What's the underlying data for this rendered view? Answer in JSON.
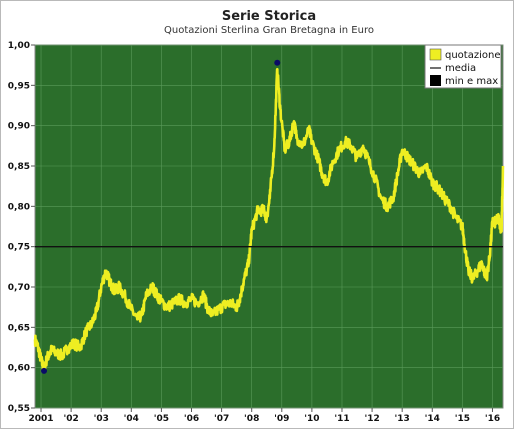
{
  "chart_data": {
    "type": "line",
    "title": "Serie Storica",
    "subtitle": "Quotazioni Sterlina Gran Bretagna in Euro",
    "xlabel": "",
    "ylabel": "",
    "xlim": [
      2000.8,
      2016.35
    ],
    "ylim": [
      0.55,
      1.0
    ],
    "y_ticks": [
      "1,00",
      "0,95",
      "0,90",
      "0,85",
      "0,80",
      "0,75",
      "0,70",
      "0,65",
      "0,60",
      "0,55"
    ],
    "x_ticks": [
      {
        "label": "2001",
        "x": 2001
      },
      {
        "label": "'02",
        "x": 2002
      },
      {
        "label": "'03",
        "x": 2003
      },
      {
        "label": "'04",
        "x": 2004
      },
      {
        "label": "'05",
        "x": 2005
      },
      {
        "label": "'06",
        "x": 2006
      },
      {
        "label": "'07",
        "x": 2007
      },
      {
        "label": "'08",
        "x": 2008
      },
      {
        "label": "'09",
        "x": 2009
      },
      {
        "label": "'10",
        "x": 2010
      },
      {
        "label": "'11",
        "x": 2011
      },
      {
        "label": "'12",
        "x": 2012
      },
      {
        "label": "'13",
        "x": 2013
      },
      {
        "label": "'14",
        "x": 2014
      },
      {
        "label": "'15",
        "x": 2015
      },
      {
        "label": "'16",
        "x": 2016
      }
    ],
    "grid": true,
    "legend_position": "top-right",
    "legend": [
      "quotazione",
      "media",
      "min e max"
    ],
    "colors": {
      "plot_background": "#2b6e2b",
      "grid": "#5a9a5a",
      "series": "#eeee22",
      "mean_line": "#111111",
      "markers": "#0a0a66"
    },
    "series": [
      {
        "name": "quotazione",
        "x": [
          2000.8,
          2000.9,
          2001.0,
          2001.1,
          2001.2,
          2001.35,
          2001.5,
          2001.7,
          2001.9,
          2002.1,
          2002.3,
          2002.5,
          2002.7,
          2002.85,
          2003.0,
          2003.15,
          2003.3,
          2003.45,
          2003.6,
          2003.8,
          2004.0,
          2004.2,
          2004.35,
          2004.5,
          2004.7,
          2004.85,
          2005.0,
          2005.2,
          2005.4,
          2005.6,
          2005.8,
          2006.0,
          2006.2,
          2006.4,
          2006.55,
          2006.7,
          2006.9,
          2007.1,
          2007.3,
          2007.5,
          2007.6,
          2007.75,
          2007.9,
          2008.0,
          2008.2,
          2008.4,
          2008.5,
          2008.6,
          2008.75,
          2008.85,
          2008.95,
          2009.1,
          2009.25,
          2009.4,
          2009.5,
          2009.7,
          2009.9,
          2010.0,
          2010.2,
          2010.35,
          2010.5,
          2010.7,
          2010.9,
          2011.1,
          2011.3,
          2011.5,
          2011.7,
          2011.9,
          2012.1,
          2012.3,
          2012.5,
          2012.7,
          2012.85,
          2013.0,
          2013.2,
          2013.4,
          2013.6,
          2013.8,
          2014.0,
          2014.2,
          2014.4,
          2014.6,
          2014.8,
          2015.0,
          2015.1,
          2015.2,
          2015.35,
          2015.5,
          2015.65,
          2015.8,
          2015.9,
          2016.0,
          2016.1,
          2016.2,
          2016.3,
          2016.35
        ],
        "values": [
          0.635,
          0.625,
          0.61,
          0.598,
          0.612,
          0.622,
          0.618,
          0.615,
          0.625,
          0.63,
          0.625,
          0.645,
          0.655,
          0.67,
          0.7,
          0.72,
          0.705,
          0.695,
          0.7,
          0.688,
          0.672,
          0.66,
          0.665,
          0.69,
          0.7,
          0.69,
          0.682,
          0.675,
          0.68,
          0.685,
          0.68,
          0.685,
          0.68,
          0.69,
          0.672,
          0.665,
          0.672,
          0.678,
          0.68,
          0.675,
          0.685,
          0.71,
          0.73,
          0.77,
          0.795,
          0.795,
          0.785,
          0.81,
          0.875,
          0.97,
          0.92,
          0.87,
          0.88,
          0.905,
          0.885,
          0.875,
          0.895,
          0.88,
          0.86,
          0.84,
          0.83,
          0.855,
          0.87,
          0.88,
          0.875,
          0.86,
          0.875,
          0.855,
          0.835,
          0.81,
          0.8,
          0.81,
          0.84,
          0.87,
          0.86,
          0.85,
          0.84,
          0.85,
          0.83,
          0.822,
          0.81,
          0.8,
          0.785,
          0.775,
          0.745,
          0.72,
          0.71,
          0.72,
          0.73,
          0.71,
          0.735,
          0.78,
          0.78,
          0.785,
          0.77,
          0.85
        ]
      },
      {
        "name": "media",
        "value": 0.75
      }
    ],
    "min_max": [
      {
        "label": "min",
        "x": 2001.1,
        "y": 0.596
      },
      {
        "label": "max",
        "x": 2008.85,
        "y": 0.978
      }
    ]
  }
}
